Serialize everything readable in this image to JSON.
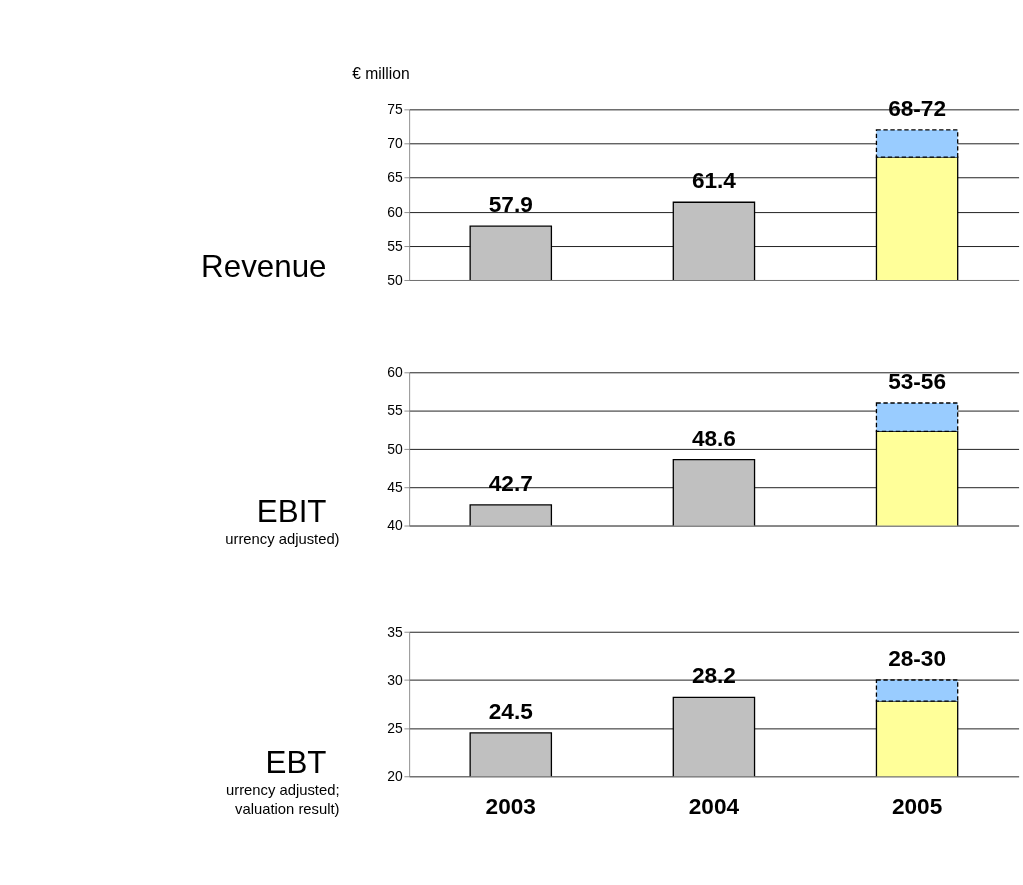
{
  "chart_data": [
    {
      "type": "bar",
      "title": "Revenue",
      "ylabel": "€ million",
      "categories": [
        "2003",
        "2004",
        "2005"
      ],
      "grid": "y",
      "tick_labels": "y",
      "ylim": [
        50,
        75
      ],
      "yticks": [
        50,
        55,
        60,
        65,
        70,
        75
      ],
      "series": [
        {
          "color": "#c0c0c0",
          "values": [
            57.9,
            61.4,
            null
          ],
          "value_labels": [
            "57.9",
            "61.4",
            null
          ]
        },
        {
          "color": "#ffff99",
          "values": [
            null,
            null,
            68
          ],
          "value_labels": [
            null,
            null,
            null
          ]
        },
        {
          "color": "#99ccff",
          "values": [
            null,
            null,
            4
          ],
          "base": [
            null,
            null,
            68
          ],
          "value_labels": [
            null,
            null,
            "68-72"
          ],
          "line_style": "dashed"
        }
      ]
    },
    {
      "type": "bar",
      "title": "EBIT",
      "annotations": [
        "urrency adjusted)"
      ],
      "categories": [
        "2003",
        "2004",
        "2005"
      ],
      "grid": "y",
      "tick_labels": "y",
      "ylim": [
        40,
        60
      ],
      "yticks": [
        40,
        45,
        50,
        55,
        60
      ],
      "series": [
        {
          "color": "#c0c0c0",
          "values": [
            42.7,
            48.6,
            null
          ],
          "value_labels": [
            "42.7",
            "48.6",
            null
          ]
        },
        {
          "color": "#ffff99",
          "values": [
            null,
            null,
            52.3
          ],
          "value_labels": [
            null,
            null,
            null
          ]
        },
        {
          "color": "#99ccff",
          "values": [
            null,
            null,
            3.7
          ],
          "base": [
            null,
            null,
            52.3
          ],
          "value_labels": [
            null,
            null,
            "53-56"
          ],
          "line_style": "dashed"
        }
      ]
    },
    {
      "type": "bar",
      "title": "EBT",
      "annotations": [
        "urrency adjusted;",
        "valuation result)"
      ],
      "categories": [
        "2003",
        "2004",
        "2005"
      ],
      "grid": "y",
      "ylim": [
        20,
        35
      ],
      "yticks": [
        20,
        25,
        30,
        35
      ],
      "series": [
        {
          "color": "#c0c0c0",
          "values": [
            24.5,
            28.2,
            null
          ],
          "value_labels": [
            "24.5",
            "28.2",
            null
          ]
        },
        {
          "color": "#ffff99",
          "values": [
            null,
            null,
            27.8
          ],
          "value_labels": [
            null,
            null,
            null
          ]
        },
        {
          "color": "#99ccff",
          "values": [
            null,
            null,
            2.2
          ],
          "base": [
            null,
            null,
            27.8
          ],
          "value_labels": [
            null,
            null,
            "28-30"
          ],
          "line_style": "dashed"
        }
      ]
    }
  ]
}
